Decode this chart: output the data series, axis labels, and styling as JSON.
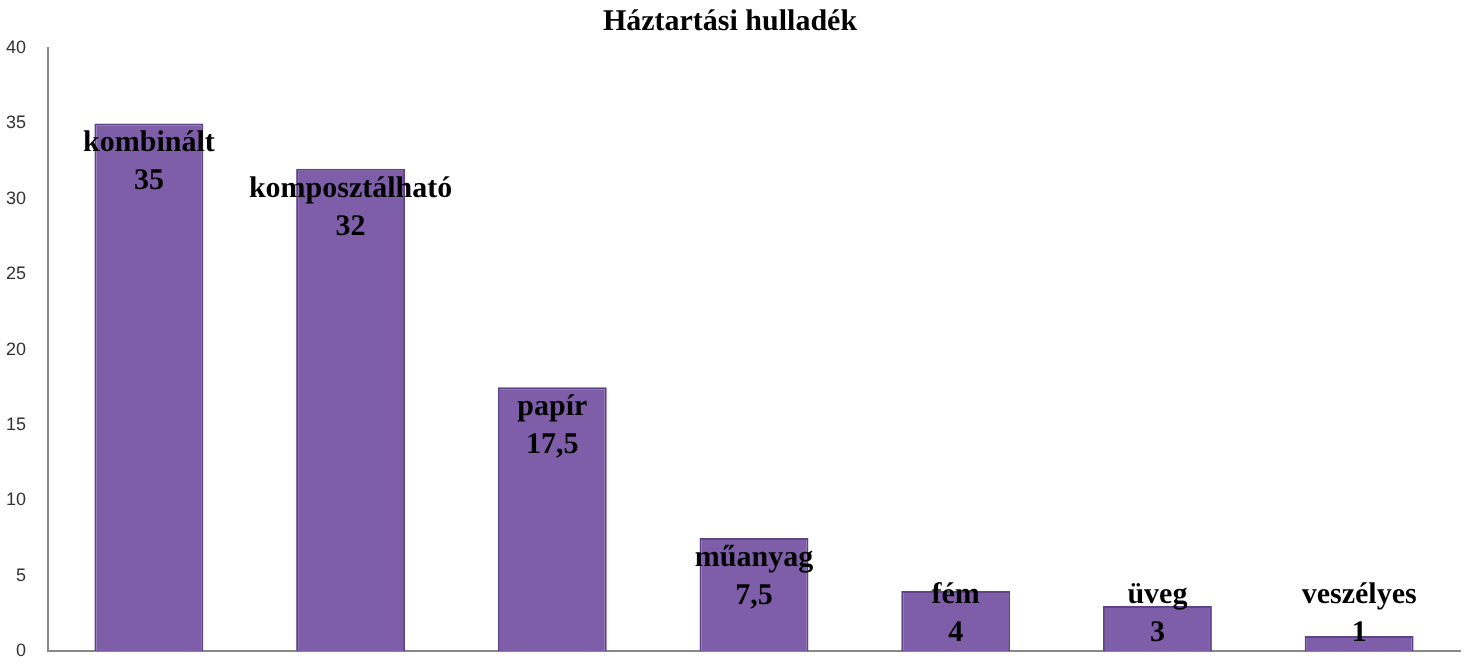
{
  "chart_data": {
    "type": "bar",
    "title": "Háztartási hulladék",
    "categories": [
      "kombinált",
      "komposztálható",
      "papír",
      "műanyag",
      "fém",
      "üveg",
      "veszélyes"
    ],
    "values": [
      35,
      32,
      17.5,
      7.5,
      4,
      3,
      1
    ],
    "value_labels": [
      "35",
      "32",
      "17,5",
      "7,5",
      "4",
      "3",
      "1"
    ],
    "color": "#7e5ea8",
    "ylim": [
      0,
      40
    ],
    "yticks": [
      0,
      5,
      10,
      15,
      20,
      25,
      30,
      35,
      40
    ],
    "grid": false,
    "legend": false,
    "tick_labels": "y"
  }
}
